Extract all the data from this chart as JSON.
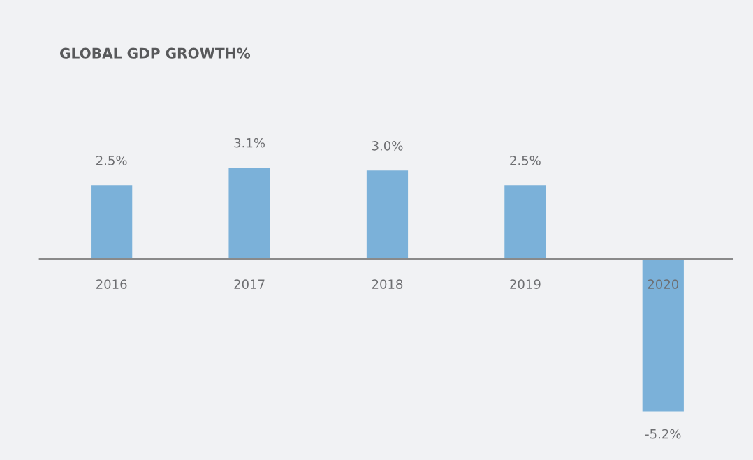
{
  "chart_data": {
    "type": "bar",
    "title": "GLOBAL GDP GROWTH%",
    "categories": [
      "2016",
      "2017",
      "2018",
      "2019",
      "2020"
    ],
    "values": [
      2.5,
      3.1,
      3.0,
      2.5,
      -5.2
    ],
    "value_labels": [
      "2.5%",
      "3.1%",
      "3.0%",
      "2.5%",
      "-5.2%"
    ],
    "color": "#7bb1d9"
  }
}
